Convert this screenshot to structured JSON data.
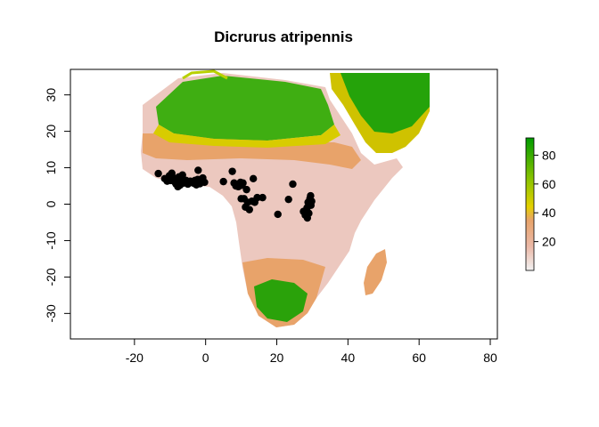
{
  "chart_data": {
    "type": "map",
    "title": "Dicrurus atripennis",
    "xlim": [
      -38,
      82
    ],
    "ylim": [
      -37,
      37
    ],
    "x_ticks": [
      -20,
      0,
      20,
      40,
      60,
      80
    ],
    "y_ticks": [
      -30,
      -20,
      -10,
      0,
      10,
      20,
      30
    ],
    "legend": {
      "placement": "right",
      "range": [
        0,
        92
      ],
      "ticks": [
        20,
        40,
        60,
        80
      ],
      "colors": [
        "#f2f2f2",
        "#ebb9a8",
        "#e8a36a",
        "#e4d000",
        "#8ec400",
        "#009b00"
      ]
    },
    "occurrences": [
      [
        -13.3,
        8.4
      ],
      [
        -11.5,
        7.0
      ],
      [
        -10.8,
        6.3
      ],
      [
        -10.2,
        7.8
      ],
      [
        -9.8,
        6.5
      ],
      [
        -9.5,
        8.5
      ],
      [
        -9.0,
        7.2
      ],
      [
        -8.6,
        6.0
      ],
      [
        -8.3,
        5.5
      ],
      [
        -8.0,
        6.8
      ],
      [
        -7.8,
        4.8
      ],
      [
        -7.5,
        7.5
      ],
      [
        -7.2,
        5.2
      ],
      [
        -6.8,
        6.2
      ],
      [
        -6.5,
        8.0
      ],
      [
        -6.2,
        5.8
      ],
      [
        -5.5,
        6.5
      ],
      [
        -5.0,
        5.5
      ],
      [
        -4.3,
        6.3
      ],
      [
        -3.5,
        5.8
      ],
      [
        -3.0,
        6.5
      ],
      [
        -2.6,
        5.3
      ],
      [
        -2.2,
        6.8
      ],
      [
        -2.1,
        9.3
      ],
      [
        -1.6,
        5.6
      ],
      [
        -1.2,
        6.2
      ],
      [
        -0.8,
        7.2
      ],
      [
        -0.3,
        6.0
      ],
      [
        5.0,
        6.2
      ],
      [
        7.5,
        9.0
      ],
      [
        8.0,
        5.8
      ],
      [
        8.5,
        5.0
      ],
      [
        9.0,
        5.5
      ],
      [
        9.2,
        4.8
      ],
      [
        9.8,
        6.0
      ],
      [
        10.2,
        5.2
      ],
      [
        10.5,
        5.8
      ],
      [
        10.0,
        1.5
      ],
      [
        10.8,
        1.5
      ],
      [
        11.5,
        4.0
      ],
      [
        11.2,
        -0.8
      ],
      [
        11.8,
        0.5
      ],
      [
        12.3,
        -1.5
      ],
      [
        13.0,
        0.8
      ],
      [
        13.4,
        7.0
      ],
      [
        13.8,
        0.5
      ],
      [
        14.5,
        1.8
      ],
      [
        16.0,
        1.8
      ],
      [
        20.3,
        -2.8
      ],
      [
        23.3,
        1.3
      ],
      [
        24.5,
        5.5
      ],
      [
        27.5,
        -2.0
      ],
      [
        28.0,
        -3.0
      ],
      [
        28.5,
        -1.0
      ],
      [
        28.8,
        0.5
      ],
      [
        29.0,
        -2.5
      ],
      [
        29.3,
        1.5
      ],
      [
        29.5,
        2.3
      ],
      [
        29.6,
        -0.3
      ],
      [
        28.6,
        -3.8
      ],
      [
        29.8,
        0.8
      ]
    ]
  }
}
